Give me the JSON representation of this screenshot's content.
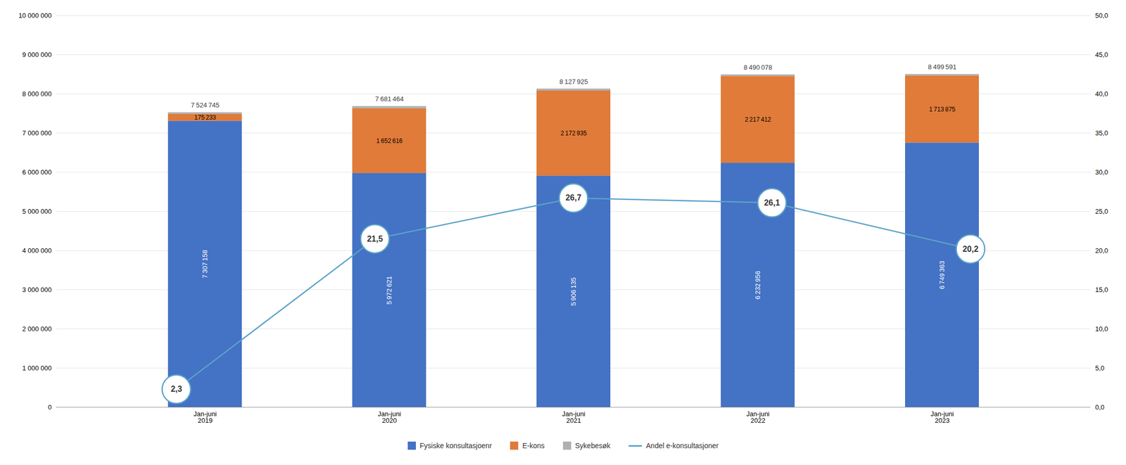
{
  "chart_data": {
    "type": "bar",
    "stacked": true,
    "categories": [
      "Jan-juni\n2019",
      "Jan-juni\n2020",
      "Jan-juni\n2021",
      "Jan-juni\n2022",
      "Jan-juni\n2023"
    ],
    "series": [
      {
        "name": "Fysiske konsultasjoenr",
        "type": "bar",
        "color": "#4472C4",
        "values": [
          7307158,
          5972621,
          5906135,
          6232956,
          6749363
        ],
        "data_labels": true,
        "value_labels": [
          "7 307 158",
          "5 972 621",
          "5 906 135",
          "6 232 956",
          "6 749 363"
        ]
      },
      {
        "name": "E-kons",
        "type": "bar",
        "color": "#E07B39",
        "values": [
          175233,
          1652616,
          2172935,
          2217412,
          1713875
        ],
        "data_labels": true,
        "value_labels": [
          "175 233",
          "1 652 616",
          "2 172 935",
          "2 217 412",
          "1 713 875"
        ]
      },
      {
        "name": "Sykebesøk",
        "type": "bar",
        "color": "#B0B0B0",
        "values": [
          42354,
          56227,
          48855,
          39710,
          36353
        ],
        "data_labels": false
      },
      {
        "name": "Andel e-konsultasjoner",
        "type": "line",
        "axis": "y2",
        "color": "#5BA3C9",
        "marker": "circle",
        "values": [
          2.3,
          21.5,
          26.7,
          26.1,
          20.2
        ],
        "data_labels": true,
        "value_labels": [
          "2,3",
          "21,5",
          "26,7",
          "26,1",
          "20,2"
        ]
      }
    ],
    "totals": [
      7524745,
      7681464,
      8127925,
      8490078,
      8499591
    ],
    "totals_labels": [
      "7 524 745",
      "7 681 464",
      "8 127 925",
      "8 490 078",
      "8 499 591"
    ],
    "ylim": [
      0,
      10000000
    ],
    "yticks": [
      0,
      {
        "value": 1000000,
        "label": "1 000 000"
      },
      {
        "value": 2000000,
        "label": "2 000 000"
      },
      {
        "value": 3000000,
        "label": "3 000 000"
      },
      {
        "value": 4000000,
        "label": "4 000 000"
      },
      {
        "value": 5000000,
        "label": "5 000 000"
      },
      {
        "value": 6000000,
        "label": "6 000 000"
      },
      {
        "value": 7000000,
        "label": "7 000 000"
      },
      {
        "value": 8000000,
        "label": "8 000 000"
      },
      {
        "value": 9000000,
        "label": "9 000 000"
      },
      {
        "value": 10000000,
        "label": "10 000 000"
      }
    ],
    "y2lim": [
      0,
      50
    ],
    "y2ticks": [
      {
        "value": 0,
        "label": "0,0"
      },
      {
        "value": 5,
        "label": "5,0"
      },
      {
        "value": 10,
        "label": "10,0"
      },
      {
        "value": 15,
        "label": "15,0"
      },
      {
        "value": 20,
        "label": "20,0"
      },
      {
        "value": 25,
        "label": "25,0"
      },
      {
        "value": 30,
        "label": "30,0"
      },
      {
        "value": 35,
        "label": "35,0"
      },
      {
        "value": 40,
        "label": "40,0"
      },
      {
        "value": 45,
        "label": "45,0"
      },
      {
        "value": 50,
        "label": "50,0"
      }
    ],
    "grid": true,
    "legend": "bottom"
  }
}
